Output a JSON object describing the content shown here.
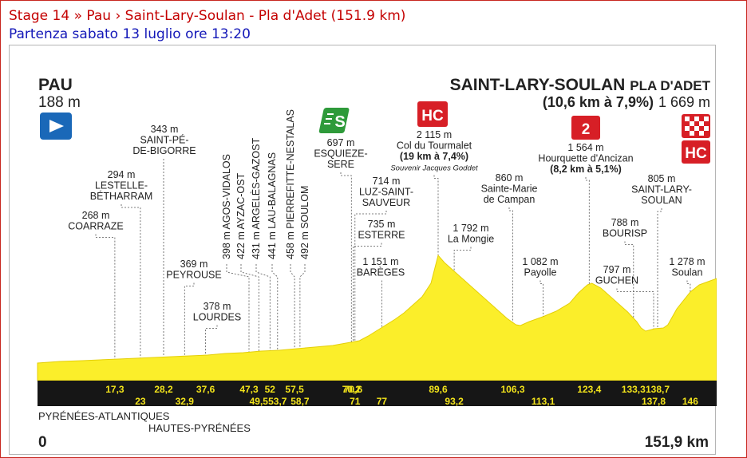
{
  "header": {
    "stage_title": "Stage 14 » Pau › Saint-Lary-Soulan - Pla d'Adet (151.9 km)",
    "departure": "Partenza sabato 13 luglio ore 13:20"
  },
  "profile": {
    "start": {
      "name": "PAU",
      "alt": "188 m"
    },
    "finish": {
      "name": "SAINT-LARY-SOULAN",
      "suffix": "PLA D'ADET",
      "climb": "(10,6 km à 7,9%)",
      "alt": "1 669 m"
    },
    "total_km": 151.9,
    "left_km_label": "0",
    "right_km_label": "151,9 km",
    "departments": [
      "PYRÉNÉES-ATLANTIQUES",
      "HAUTES-PYRÉNÉES"
    ],
    "colors": {
      "profile_fill": "#fbee2a",
      "band": "#161616",
      "km_label": "#f3e41b",
      "red": "#d71f26",
      "green": "#2e9a3a",
      "blue": "#1a68b8"
    },
    "icons": [
      "start-flag-icon",
      "sprint-icon",
      "climb-hc-icon",
      "climb-cat2-icon",
      "finish-icon"
    ],
    "km_ticks_top": [
      {
        "km": 17.3,
        "label": "17,3"
      },
      {
        "km": 28.2,
        "label": "28,2"
      },
      {
        "km": 37.6,
        "label": "37,6"
      },
      {
        "km": 47.3,
        "label": "47,3"
      },
      {
        "km": 52,
        "label": "52"
      },
      {
        "km": 57.5,
        "label": "57,5"
      },
      {
        "km": 70.2,
        "label": "70,2"
      },
      {
        "km": 70.6,
        "label": "70,6"
      },
      {
        "km": 89.6,
        "label": "89,6"
      },
      {
        "km": 106.3,
        "label": "106,3"
      },
      {
        "km": 123.4,
        "label": "123,4"
      },
      {
        "km": 133.3,
        "label": "133,3"
      },
      {
        "km": 138.7,
        "label": "138,7"
      }
    ],
    "km_ticks_bottom": [
      {
        "km": 23,
        "label": "23"
      },
      {
        "km": 32.9,
        "label": "32,9"
      },
      {
        "km": 49.5,
        "label": "49,5"
      },
      {
        "km": 53.7,
        "label": "53,7"
      },
      {
        "km": 58.7,
        "label": "58,7"
      },
      {
        "km": 71,
        "label": "71"
      },
      {
        "km": 77,
        "label": "77"
      },
      {
        "km": 93.2,
        "label": "93,2"
      },
      {
        "km": 113.1,
        "label": "113,1"
      },
      {
        "km": 137.8,
        "label": "137,8"
      },
      {
        "km": 146,
        "label": "146"
      }
    ],
    "points": [
      {
        "km": 17.3,
        "lines": [
          "268 m",
          "COARRAZE"
        ]
      },
      {
        "km": 23,
        "lines": [
          "294 m",
          "LESTELLE-",
          "BÉTHARRAM"
        ]
      },
      {
        "km": 28.2,
        "lines": [
          "343 m",
          "SAINT-PÉ-",
          "DE-BIGORRE"
        ]
      },
      {
        "km": 32.9,
        "lines": [
          "369 m",
          "PEYROUSE"
        ]
      },
      {
        "km": 37.6,
        "lines": [
          "378 m",
          "LOURDES"
        ]
      },
      {
        "km": 70.2,
        "lines": [
          "697 m",
          "ESQUIEZE-",
          "SERE"
        ]
      },
      {
        "km": 71,
        "lines": [
          "714 m",
          "LUZ-SAINT-",
          "SAUVEUR"
        ]
      },
      {
        "km": 70.6,
        "lines": [
          "735 m",
          "ESTERRE"
        ]
      },
      {
        "km": 77,
        "lines": [
          "1 151 m",
          "BARÈGES"
        ]
      },
      {
        "km": 89.6,
        "lines": [
          "2 115 m",
          "Col du Tourmalet",
          "(19 km à 7,4%)",
          "Souvenir Jacques Goddet"
        ]
      },
      {
        "km": 93.2,
        "lines": [
          "1 792 m",
          "La Mongie"
        ]
      },
      {
        "km": 106.3,
        "lines": [
          "860 m",
          "Sainte-Marie",
          "de Campan"
        ]
      },
      {
        "km": 113.1,
        "lines": [
          "1 082 m",
          "Payolle"
        ]
      },
      {
        "km": 123.4,
        "lines": [
          "1 564 m",
          "Hourquette d'Ancizan",
          "(8,2 km à 5,1%)"
        ]
      },
      {
        "km": 133.3,
        "lines": [
          "788 m",
          "BOURISP"
        ]
      },
      {
        "km": 137.8,
        "lines": [
          "797 m",
          "GUCHEN"
        ]
      },
      {
        "km": 138.7,
        "lines": [
          "805 m",
          "SAINT-LARY-",
          "SOULAN"
        ]
      },
      {
        "km": 146,
        "lines": [
          "1 278 m",
          "Soulan"
        ]
      }
    ],
    "vertical_points": [
      {
        "km": 47.3,
        "label": "398 m AGOS-VIDALOS"
      },
      {
        "km": 49.5,
        "label": "422 m AYZAC-OST"
      },
      {
        "km": 52,
        "label": "431 m ARGELÈS-GAZOST"
      },
      {
        "km": 53.7,
        "label": "441 m LAU-BALAGNAS"
      },
      {
        "km": 57.5,
        "label": "458 m PIERREFITTE-NESTALAS"
      },
      {
        "km": 58.7,
        "label": "492 m SOULOM"
      }
    ],
    "badges": {
      "sprint": "S",
      "tourmalet": "HC",
      "ancizan": "2",
      "finish": "HC"
    }
  }
}
